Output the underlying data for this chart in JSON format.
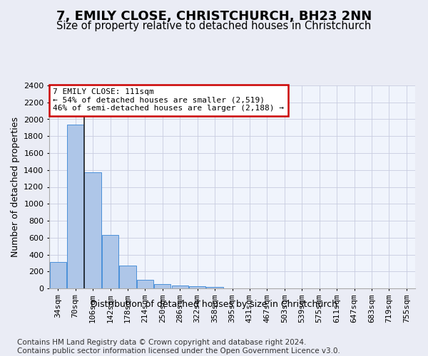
{
  "title": "7, EMILY CLOSE, CHRISTCHURCH, BH23 2NN",
  "subtitle": "Size of property relative to detached houses in Christchurch",
  "xlabel": "Distribution of detached houses by size in Christchurch",
  "ylabel": "Number of detached properties",
  "bar_categories": [
    "34sqm",
    "70sqm",
    "106sqm",
    "142sqm",
    "178sqm",
    "214sqm",
    "250sqm",
    "286sqm",
    "322sqm",
    "358sqm",
    "395sqm",
    "431sqm",
    "467sqm",
    "503sqm",
    "539sqm",
    "575sqm",
    "611sqm",
    "647sqm",
    "683sqm",
    "719sqm",
    "755sqm"
  ],
  "bar_values": [
    315,
    1940,
    1375,
    630,
    270,
    100,
    48,
    35,
    28,
    20,
    0,
    0,
    0,
    0,
    0,
    0,
    0,
    0,
    0,
    0,
    0
  ],
  "bar_color": "#aec6e8",
  "bar_edge_color": "#4a90d9",
  "vline_x": 1.5,
  "vline_color": "#222222",
  "annotation_text": "7 EMILY CLOSE: 111sqm\n← 54% of detached houses are smaller (2,519)\n46% of semi-detached houses are larger (2,188) →",
  "annotation_box_color": "#ffffff",
  "annotation_box_edge": "#cc0000",
  "ylim": [
    0,
    2400
  ],
  "yticks": [
    0,
    200,
    400,
    600,
    800,
    1000,
    1200,
    1400,
    1600,
    1800,
    2000,
    2200,
    2400
  ],
  "footer_line1": "Contains HM Land Registry data © Crown copyright and database right 2024.",
  "footer_line2": "Contains public sector information licensed under the Open Government Licence v3.0.",
  "bg_color": "#eaecf5",
  "plot_bg_color": "#f0f4fc",
  "grid_color": "#c8cce0",
  "title_fontsize": 13,
  "subtitle_fontsize": 10.5,
  "axis_label_fontsize": 9,
  "tick_fontsize": 8,
  "footer_fontsize": 7.5
}
